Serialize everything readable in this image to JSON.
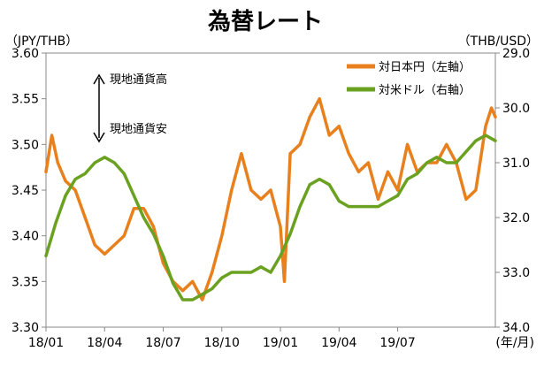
{
  "chart_data": {
    "type": "line",
    "title": "為替レート",
    "left_axis_unit": "（JPY/THB）",
    "right_axis_unit": "（THB/USD）",
    "x_unit_label": "(年/月)",
    "x_tick_labels": [
      "18/01",
      "18/04",
      "18/07",
      "18/10",
      "19/01",
      "19/04",
      "19/07"
    ],
    "x_range": [
      0,
      23
    ],
    "left_ylim": [
      3.3,
      3.6
    ],
    "left_ticks": [
      "3.30",
      "3.35",
      "3.40",
      "3.45",
      "3.50",
      "3.55",
      "3.60"
    ],
    "right_ylim": [
      29.0,
      34.0
    ],
    "right_axis_inverted": true,
    "right_ticks": [
      "29.0",
      "30.0",
      "31.0",
      "32.0",
      "33.0",
      "34.0"
    ],
    "grid": false,
    "legend_position": "top-right",
    "annotation": {
      "up": "現地通貨高",
      "down": "現地通貨安"
    },
    "series": [
      {
        "name": "対日本円（左軸）",
        "axis": "left",
        "color": "#E8801E",
        "x": [
          0,
          0.3,
          0.6,
          1,
          1.5,
          2,
          2.5,
          3,
          3.5,
          4,
          4.5,
          5,
          5.5,
          6,
          6.5,
          7,
          7.5,
          8,
          8.5,
          9,
          9.5,
          10,
          10.5,
          11,
          11.5,
          12,
          12.2,
          12.5,
          13,
          13.5,
          14,
          14.5,
          15,
          15.5,
          16,
          16.5,
          17,
          17.5,
          18,
          18.5,
          19,
          19.5,
          20,
          20.5,
          21,
          21.5,
          22,
          22.5,
          22.8,
          23
        ],
        "values": [
          3.47,
          3.51,
          3.48,
          3.46,
          3.45,
          3.42,
          3.39,
          3.38,
          3.39,
          3.4,
          3.43,
          3.43,
          3.41,
          3.37,
          3.35,
          3.34,
          3.35,
          3.33,
          3.36,
          3.4,
          3.45,
          3.49,
          3.45,
          3.44,
          3.45,
          3.41,
          3.35,
          3.49,
          3.5,
          3.53,
          3.55,
          3.51,
          3.52,
          3.49,
          3.47,
          3.48,
          3.44,
          3.47,
          3.45,
          3.5,
          3.47,
          3.48,
          3.48,
          3.5,
          3.48,
          3.44,
          3.45,
          3.52,
          3.54,
          3.53
        ]
      },
      {
        "name": "対米ドル（右軸）",
        "axis": "right",
        "color": "#6AA121",
        "x": [
          0,
          0.5,
          1,
          1.5,
          2,
          2.5,
          3,
          3.5,
          4,
          4.5,
          5,
          5.5,
          6,
          6.5,
          7,
          7.5,
          8,
          8.5,
          9,
          9.5,
          10,
          10.5,
          11,
          11.5,
          12,
          12.5,
          13,
          13.5,
          14,
          14.5,
          15,
          15.5,
          16,
          16.5,
          17,
          17.5,
          18,
          18.5,
          19,
          19.5,
          20,
          20.5,
          21,
          21.5,
          22,
          22.5,
          23
        ],
        "values": [
          32.7,
          32.1,
          31.6,
          31.3,
          31.2,
          31.0,
          30.9,
          31.0,
          31.2,
          31.6,
          32.0,
          32.3,
          32.7,
          33.2,
          33.5,
          33.5,
          33.4,
          33.3,
          33.1,
          33.0,
          33.0,
          33.0,
          32.9,
          33.0,
          32.7,
          32.3,
          31.8,
          31.4,
          31.3,
          31.4,
          31.7,
          31.8,
          31.8,
          31.8,
          31.8,
          31.7,
          31.6,
          31.3,
          31.2,
          31.0,
          30.9,
          31.0,
          31.0,
          30.8,
          30.6,
          30.5,
          30.6
        ]
      }
    ]
  }
}
